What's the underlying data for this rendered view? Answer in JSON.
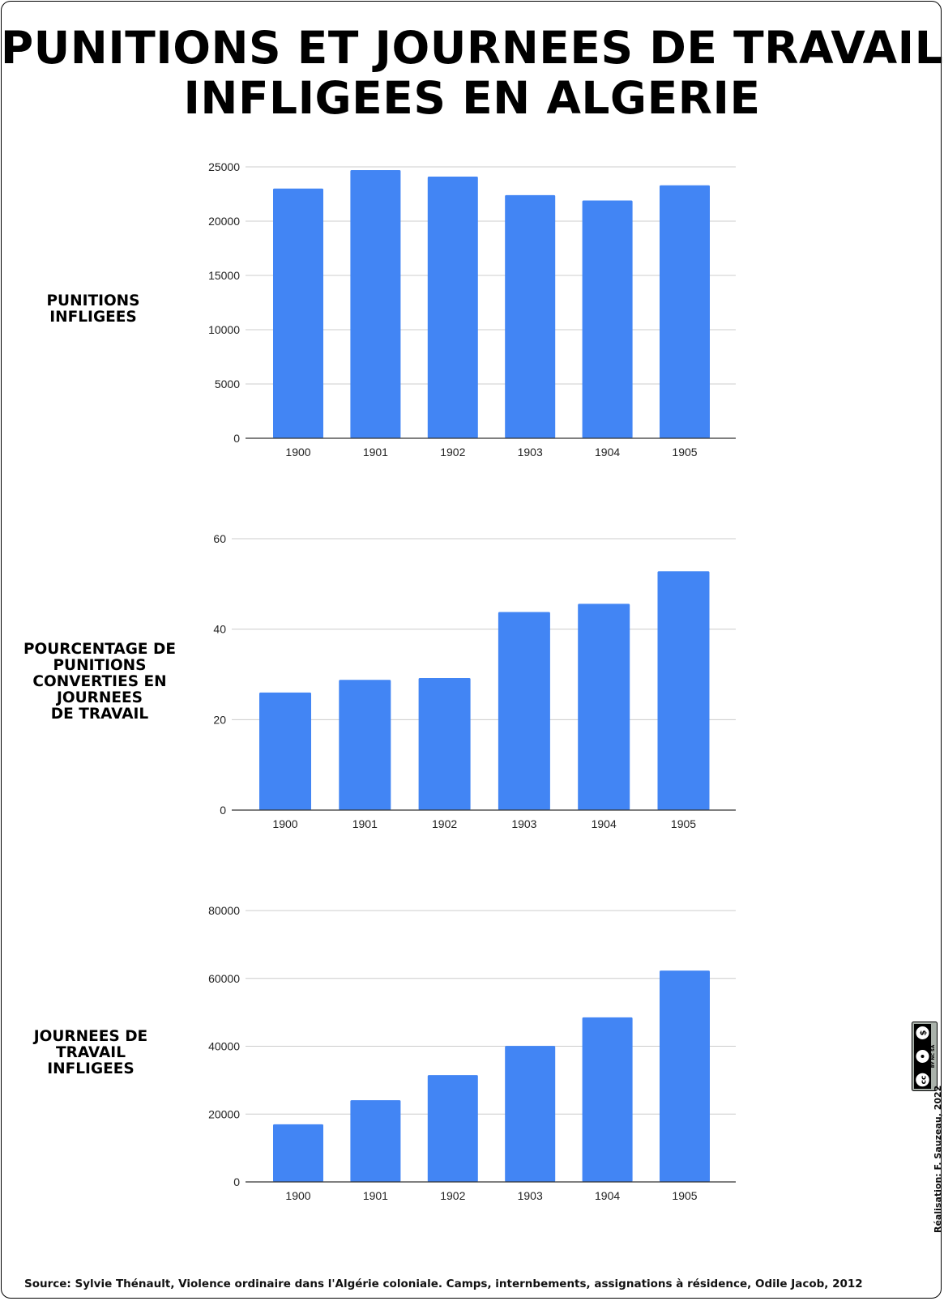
{
  "title_lines": [
    "PUNITIONS ET JOURNEES DE TRAVAIL",
    "INFLIGEES EN ALGERIE"
  ],
  "source": "Source: Sylvie Thénault, Violence ordinaire dans l'Algérie coloniale. Camps, internbements, assignations à résidence, Odile Jacob, 2012",
  "credit": "Réalisation: F. Sauzeau, 2022",
  "license": {
    "icon": "cc-by-nc-sa-icon",
    "text": "BY NC SA"
  },
  "colors": {
    "bar": "#4285F4",
    "grid": "#cccccc",
    "axis": "#333333"
  },
  "chart_data": [
    {
      "type": "bar",
      "ylabel": "PUNITIONS\nINFLIGEES",
      "categories": [
        "1900",
        "1901",
        "1902",
        "1903",
        "1904",
        "1905"
      ],
      "values": [
        23000,
        24700,
        24100,
        22400,
        21900,
        23300
      ],
      "ylim": [
        0,
        25000
      ],
      "yticks": [
        0,
        5000,
        10000,
        15000,
        20000,
        25000
      ],
      "grid": true,
      "legend": "none"
    },
    {
      "type": "bar",
      "ylabel": "POURCENTAGE DE\nPUNITIONS\nCONVERTIES EN\nJOURNEES\nDE TRAVAIL",
      "categories": [
        "1900",
        "1901",
        "1902",
        "1903",
        "1904",
        "1905"
      ],
      "values": [
        26,
        28.8,
        29.2,
        43.8,
        45.6,
        52.8
      ],
      "ylim": [
        0,
        60
      ],
      "yticks": [
        0,
        20,
        40,
        60
      ],
      "grid": true,
      "legend": "none"
    },
    {
      "type": "bar",
      "ylabel": "JOURNEES DE\nTRAVAIL\nINFLIGEES",
      "categories": [
        "1900",
        "1901",
        "1902",
        "1903",
        "1904",
        "1905"
      ],
      "values": [
        17000,
        24100,
        31500,
        40100,
        48500,
        62300
      ],
      "ylim": [
        0,
        80000
      ],
      "yticks": [
        0,
        20000,
        40000,
        60000,
        80000
      ],
      "grid": true,
      "legend": "none"
    }
  ]
}
